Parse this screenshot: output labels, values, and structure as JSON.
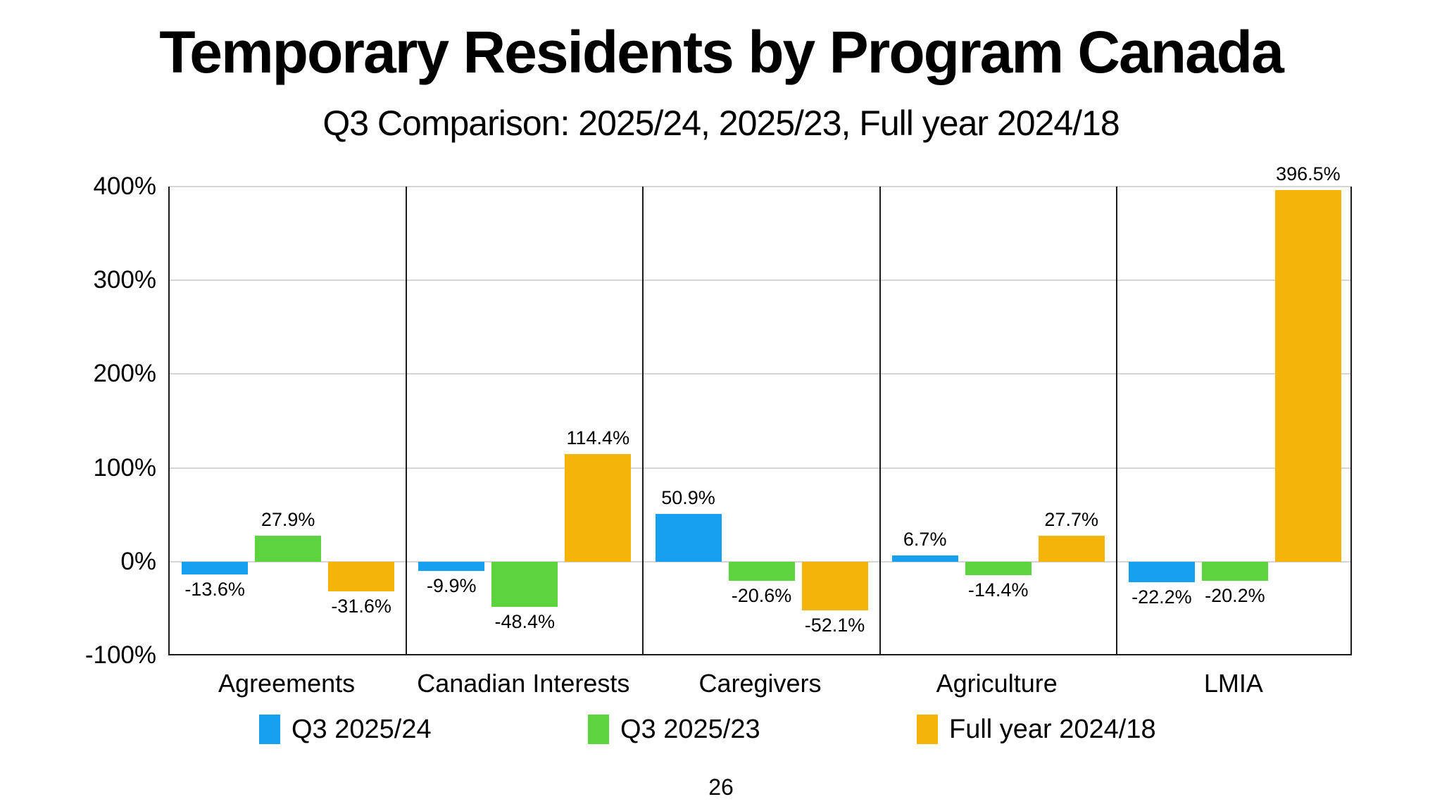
{
  "title": "Temporary Residents by Program Canada",
  "subtitle": "Q3 Comparison: 2025/24, 2025/23, Full year 2024/18",
  "page_number": "26",
  "chart_data": {
    "type": "bar",
    "categories": [
      "Agreements",
      "Canadian Interests",
      "Caregivers",
      "Agriculture",
      "LMIA"
    ],
    "series": [
      {
        "name": "Q3 2025/24",
        "color": "#18A0F0",
        "values": [
          -13.6,
          -9.9,
          50.9,
          6.7,
          -22.2
        ],
        "labels": [
          "-13.6%",
          "-9.9%",
          "50.9%",
          "6.7%",
          "-22.2%"
        ]
      },
      {
        "name": "Q3 2025/23",
        "color": "#5DD33F",
        "values": [
          27.9,
          -48.4,
          -20.6,
          -14.4,
          -20.2
        ],
        "labels": [
          "27.9%",
          "-48.4%",
          "-20.6%",
          "-14.4%",
          "-20.2%"
        ]
      },
      {
        "name": "Full year 2024/18",
        "color": "#F5B40A",
        "values": [
          -31.6,
          114.4,
          -52.1,
          27.7,
          396.5
        ],
        "labels": [
          "-31.6%",
          "114.4%",
          "-52.1%",
          "27.7%",
          "396.5%"
        ]
      }
    ],
    "value_suffix": "%",
    "ylim": [
      -100,
      400
    ],
    "y_ticks": [
      {
        "value": 400,
        "label": "400%"
      },
      {
        "value": 300,
        "label": "300%"
      },
      {
        "value": 200,
        "label": "200%"
      },
      {
        "value": 100,
        "label": "100%"
      },
      {
        "value": 0,
        "label": "0%"
      },
      {
        "value": -100,
        "label": "-100%"
      }
    ],
    "grid": "horizontal",
    "legend_position": "bottom",
    "colors": {
      "gridline": "#d5d5d5",
      "axis_border": "#1a1a1a",
      "text": "#000000",
      "background": "#ffffff"
    }
  }
}
